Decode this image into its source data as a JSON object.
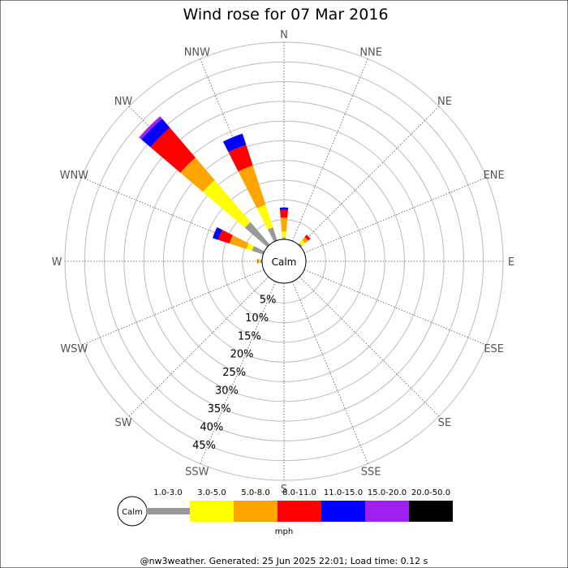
{
  "chart_data": {
    "type": "wind-rose",
    "title": "Wind rose for 07 Mar 2016",
    "directions": [
      "N",
      "NNE",
      "NE",
      "ENE",
      "E",
      "ESE",
      "SE",
      "SSE",
      "S",
      "SSW",
      "SW",
      "WSW",
      "W",
      "WNW",
      "NW",
      "NNW"
    ],
    "ring_labels": [
      "5%",
      "10%",
      "15%",
      "20%",
      "25%",
      "30%",
      "35%",
      "40%",
      "45%"
    ],
    "rmax": 50,
    "ring_step": 5,
    "calm_label": "Calm",
    "unit_label": "mph",
    "speed_bins": [
      {
        "label": "1.0-3.0",
        "color": "#999999"
      },
      {
        "label": "3.0-5.0",
        "color": "#ffff00"
      },
      {
        "label": "5.0-8.0",
        "color": "#ffa500"
      },
      {
        "label": "8.0-11.0",
        "color": "#ff0000"
      },
      {
        "label": "11.0-15.0",
        "color": "#0000ff"
      },
      {
        "label": "15.0-20.0",
        "color": "#a020f0"
      },
      {
        "label": "20.0-50.0",
        "color": "#000000"
      }
    ],
    "series": [
      {
        "direction": "N",
        "values": [
          0.5,
          1.5,
          3.5,
          2.0,
          0.6,
          0,
          0
        ]
      },
      {
        "direction": "NNE",
        "values": [
          0,
          0,
          0,
          0,
          0,
          0,
          0
        ]
      },
      {
        "direction": "NE",
        "values": [
          0.5,
          1.0,
          1.0,
          0.8,
          0,
          0,
          0
        ]
      },
      {
        "direction": "ENE",
        "values": [
          0,
          0,
          0,
          0,
          0,
          0,
          0
        ]
      },
      {
        "direction": "E",
        "values": [
          0,
          0,
          0,
          0,
          0,
          0,
          0
        ]
      },
      {
        "direction": "ESE",
        "values": [
          0,
          0,
          0,
          0,
          0,
          0,
          0
        ]
      },
      {
        "direction": "SE",
        "values": [
          0,
          0,
          0,
          0,
          0,
          0,
          0
        ]
      },
      {
        "direction": "SSE",
        "values": [
          0,
          0,
          0,
          0,
          0,
          0,
          0
        ]
      },
      {
        "direction": "S",
        "values": [
          0,
          0,
          0,
          0,
          0,
          0,
          0
        ]
      },
      {
        "direction": "SSW",
        "values": [
          0,
          0,
          0,
          0,
          0,
          0,
          0
        ]
      },
      {
        "direction": "SW",
        "values": [
          0,
          0,
          0,
          0,
          0,
          0,
          0
        ]
      },
      {
        "direction": "WSW",
        "values": [
          0,
          0,
          0,
          0,
          0,
          0,
          0
        ]
      },
      {
        "direction": "W",
        "values": [
          0.5,
          0.3,
          0.2,
          0.2,
          0,
          0,
          0
        ]
      },
      {
        "direction": "WNW",
        "values": [
          3.0,
          1.5,
          4.5,
          3.0,
          1.5,
          0,
          0
        ]
      },
      {
        "direction": "NW",
        "values": [
          7.5,
          14.0,
          7.5,
          10.0,
          3.0,
          0.8,
          0
        ]
      },
      {
        "direction": "NNW",
        "values": [
          3.5,
          6.0,
          10.5,
          5.5,
          3.0,
          0,
          0
        ]
      }
    ]
  },
  "footer": "@nw3weather. Generated: 25 Jun 2025 22:01; Load time: 0.12 s"
}
